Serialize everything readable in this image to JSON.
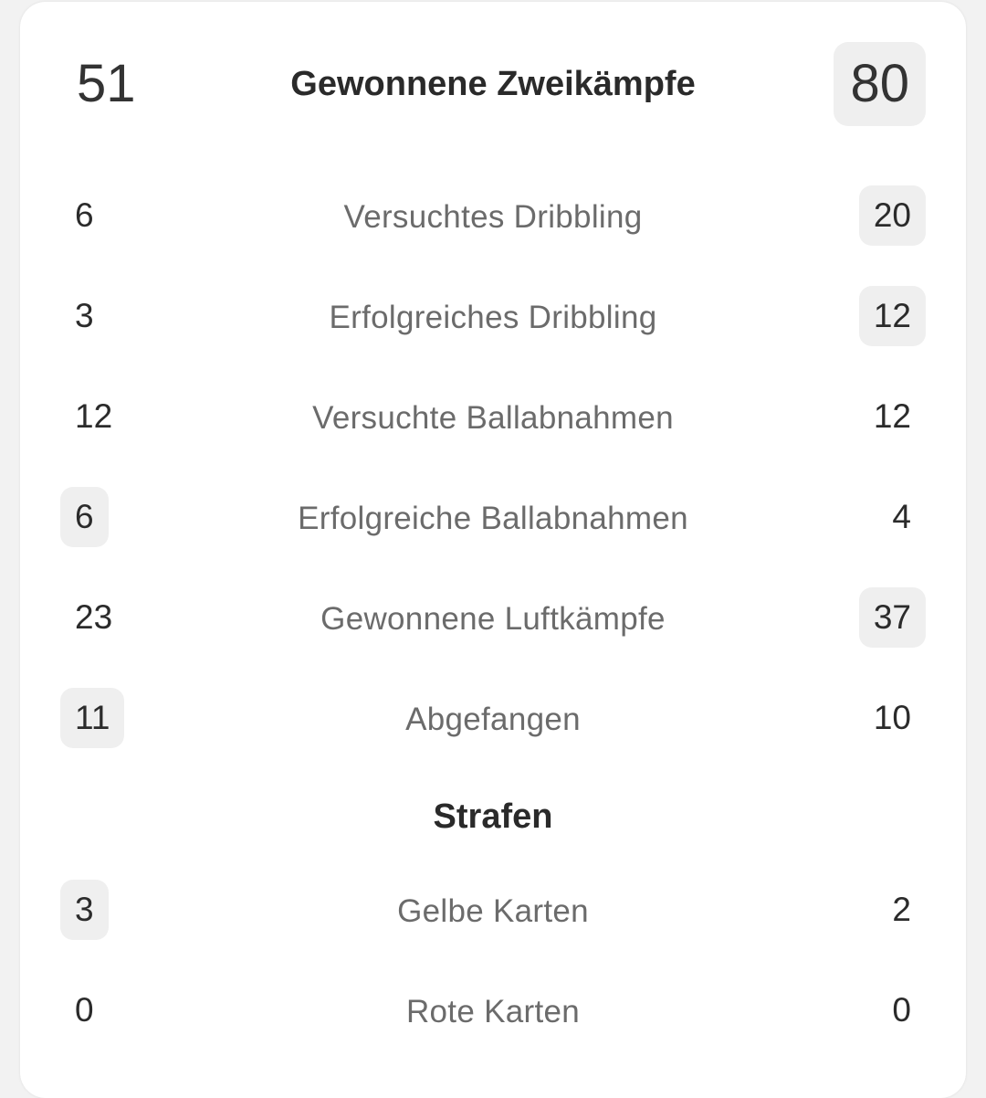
{
  "header": {
    "label": "Gewonnene Zweikämpfe",
    "home": "51",
    "away": "80",
    "highlight": "away"
  },
  "stats": [
    {
      "label": "Versuchtes Dribbling",
      "home": "6",
      "away": "20",
      "highlight": "away"
    },
    {
      "label": "Erfolgreiches Dribbling",
      "home": "3",
      "away": "12",
      "highlight": "away"
    },
    {
      "label": "Versuchte Ballabnahmen",
      "home": "12",
      "away": "12",
      "highlight": "none"
    },
    {
      "label": "Erfolgreiche Ballabnahmen",
      "home": "6",
      "away": "4",
      "highlight": "home"
    },
    {
      "label": "Gewonnene Luftkämpfe",
      "home": "23",
      "away": "37",
      "highlight": "away"
    },
    {
      "label": "Abgefangen",
      "home": "11",
      "away": "10",
      "highlight": "home"
    }
  ],
  "section": {
    "title": "Strafen"
  },
  "penalties": [
    {
      "label": "Gelbe Karten",
      "home": "3",
      "away": "2",
      "highlight": "home"
    },
    {
      "label": "Rote Karten",
      "home": "0",
      "away": "0",
      "highlight": "none"
    }
  ]
}
